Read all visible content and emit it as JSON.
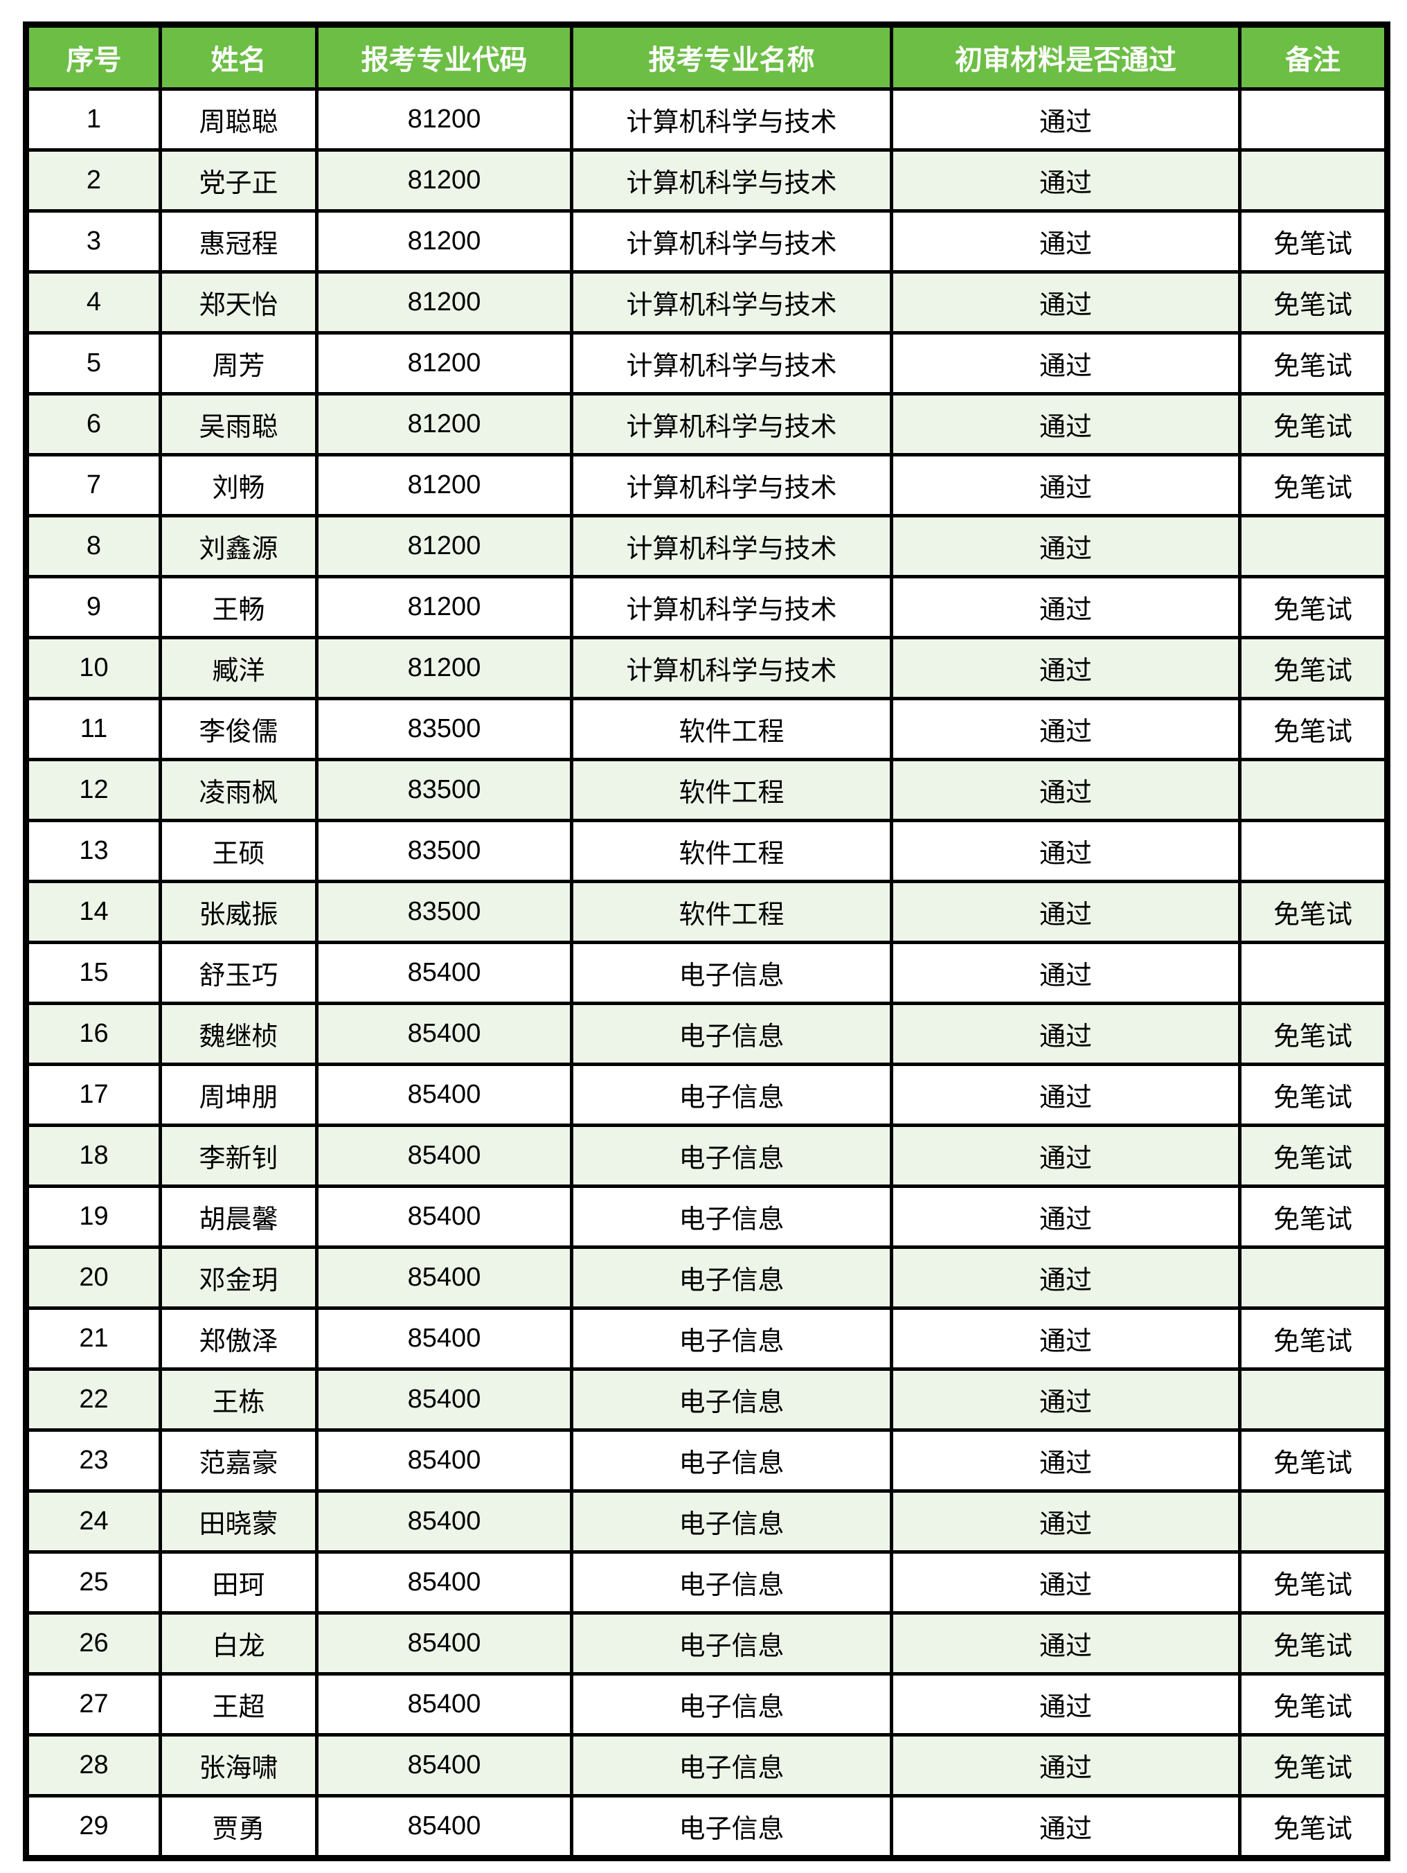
{
  "meta": {
    "description_labels": {
      "review_pass_value": "通过",
      "remark_exempt_value": "免笔试"
    },
    "colors": {
      "header_bg": "#6cbe45",
      "header_text": "#ffffff",
      "row_alt_bg": "#edf5e9",
      "row_bg": "#ffffff",
      "border": "#000000",
      "body_text": "#000000"
    }
  },
  "table": {
    "columns": [
      "序号",
      "姓名",
      "报考专业代码",
      "报考专业名称",
      "初审材料是否通过",
      "备注"
    ],
    "rows": [
      [
        "1",
        "周聪聪",
        "81200",
        "计算机科学与技术",
        "通过",
        ""
      ],
      [
        "2",
        "党子正",
        "81200",
        "计算机科学与技术",
        "通过",
        ""
      ],
      [
        "3",
        "惠冠程",
        "81200",
        "计算机科学与技术",
        "通过",
        "免笔试"
      ],
      [
        "4",
        "郑天怡",
        "81200",
        "计算机科学与技术",
        "通过",
        "免笔试"
      ],
      [
        "5",
        "周芳",
        "81200",
        "计算机科学与技术",
        "通过",
        "免笔试"
      ],
      [
        "6",
        "吴雨聪",
        "81200",
        "计算机科学与技术",
        "通过",
        "免笔试"
      ],
      [
        "7",
        "刘畅",
        "81200",
        "计算机科学与技术",
        "通过",
        "免笔试"
      ],
      [
        "8",
        "刘鑫源",
        "81200",
        "计算机科学与技术",
        "通过",
        ""
      ],
      [
        "9",
        "王畅",
        "81200",
        "计算机科学与技术",
        "通过",
        "免笔试"
      ],
      [
        "10",
        "臧洋",
        "81200",
        "计算机科学与技术",
        "通过",
        "免笔试"
      ],
      [
        "11",
        "李俊儒",
        "83500",
        "软件工程",
        "通过",
        "免笔试"
      ],
      [
        "12",
        "凌雨枫",
        "83500",
        "软件工程",
        "通过",
        ""
      ],
      [
        "13",
        "王硕",
        "83500",
        "软件工程",
        "通过",
        ""
      ],
      [
        "14",
        "张威振",
        "83500",
        "软件工程",
        "通过",
        "免笔试"
      ],
      [
        "15",
        "舒玉巧",
        "85400",
        "电子信息",
        "通过",
        ""
      ],
      [
        "16",
        "魏继桢",
        "85400",
        "电子信息",
        "通过",
        "免笔试"
      ],
      [
        "17",
        "周坤朋",
        "85400",
        "电子信息",
        "通过",
        "免笔试"
      ],
      [
        "18",
        "李新钊",
        "85400",
        "电子信息",
        "通过",
        "免笔试"
      ],
      [
        "19",
        "胡晨馨",
        "85400",
        "电子信息",
        "通过",
        "免笔试"
      ],
      [
        "20",
        "邓金玥",
        "85400",
        "电子信息",
        "通过",
        ""
      ],
      [
        "21",
        "郑傲泽",
        "85400",
        "电子信息",
        "通过",
        "免笔试"
      ],
      [
        "22",
        "王栋",
        "85400",
        "电子信息",
        "通过",
        ""
      ],
      [
        "23",
        "范嘉豪",
        "85400",
        "电子信息",
        "通过",
        "免笔试"
      ],
      [
        "24",
        "田晓蒙",
        "85400",
        "电子信息",
        "通过",
        ""
      ],
      [
        "25",
        "田珂",
        "85400",
        "电子信息",
        "通过",
        "免笔试"
      ],
      [
        "26",
        "白龙",
        "85400",
        "电子信息",
        "通过",
        "免笔试"
      ],
      [
        "27",
        "王超",
        "85400",
        "电子信息",
        "通过",
        "免笔试"
      ],
      [
        "28",
        "张海啸",
        "85400",
        "电子信息",
        "通过",
        "免笔试"
      ],
      [
        "29",
        "贾勇",
        "85400",
        "电子信息",
        "通过",
        "免笔试"
      ]
    ]
  }
}
